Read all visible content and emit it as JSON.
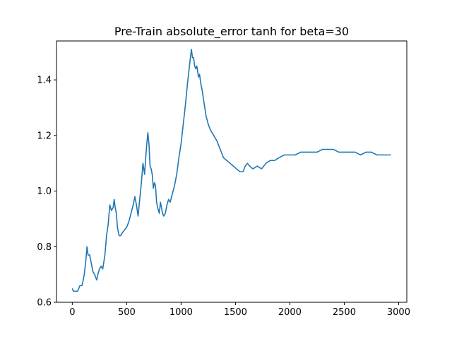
{
  "chart_data": {
    "type": "line",
    "title": "Pre-Train absolute_error tanh for beta=30",
    "xlabel": "",
    "ylabel": "",
    "xlim": [
      -145,
      3075
    ],
    "ylim": [
      0.6,
      1.54
    ],
    "xticks": [
      0,
      500,
      1000,
      1500,
      2000,
      2500,
      3000
    ],
    "xtick_labels": [
      "0",
      "500",
      "1000",
      "1500",
      "2000",
      "2500",
      "3000"
    ],
    "yticks": [
      0.6,
      0.8,
      1.0,
      1.2,
      1.4
    ],
    "ytick_labels": [
      "0.6",
      "0.8",
      "1.0",
      "1.2",
      "1.4"
    ],
    "grid": false,
    "series": [
      {
        "name": "",
        "color": "#1f77b4",
        "x": [
          0,
          10,
          30,
          50,
          70,
          90,
          110,
          125,
          135,
          145,
          160,
          175,
          190,
          205,
          215,
          225,
          235,
          250,
          265,
          280,
          300,
          315,
          330,
          345,
          360,
          375,
          385,
          395,
          405,
          415,
          430,
          445,
          460,
          480,
          500,
          520,
          540,
          560,
          575,
          590,
          605,
          620,
          635,
          650,
          665,
          675,
          685,
          695,
          705,
          715,
          725,
          735,
          745,
          755,
          765,
          775,
          785,
          800,
          810,
          820,
          830,
          840,
          855,
          870,
          885,
          900,
          920,
          940,
          960,
          980,
          1000,
          1020,
          1040,
          1060,
          1080,
          1095,
          1105,
          1115,
          1125,
          1135,
          1145,
          1160,
          1170,
          1180,
          1195,
          1210,
          1230,
          1250,
          1270,
          1300,
          1330,
          1360,
          1390,
          1420,
          1450,
          1480,
          1510,
          1540,
          1570,
          1590,
          1610,
          1630,
          1660,
          1700,
          1740,
          1780,
          1820,
          1860,
          1900,
          1950,
          2000,
          2050,
          2100,
          2150,
          2200,
          2250,
          2300,
          2350,
          2400,
          2450,
          2500,
          2550,
          2600,
          2650,
          2700,
          2750,
          2800,
          2850,
          2900,
          2930
        ],
        "y": [
          0.65,
          0.64,
          0.64,
          0.64,
          0.66,
          0.66,
          0.7,
          0.75,
          0.8,
          0.77,
          0.77,
          0.74,
          0.71,
          0.7,
          0.69,
          0.68,
          0.7,
          0.72,
          0.73,
          0.72,
          0.77,
          0.84,
          0.88,
          0.95,
          0.93,
          0.94,
          0.97,
          0.94,
          0.92,
          0.87,
          0.84,
          0.84,
          0.85,
          0.86,
          0.87,
          0.89,
          0.92,
          0.95,
          0.98,
          0.95,
          0.91,
          0.97,
          1.03,
          1.1,
          1.06,
          1.12,
          1.17,
          1.21,
          1.17,
          1.09,
          1.08,
          1.06,
          1.01,
          1.03,
          1.02,
          0.96,
          0.94,
          0.92,
          0.96,
          0.94,
          0.92,
          0.91,
          0.92,
          0.95,
          0.97,
          0.96,
          0.99,
          1.02,
          1.06,
          1.12,
          1.17,
          1.24,
          1.31,
          1.39,
          1.46,
          1.51,
          1.48,
          1.48,
          1.45,
          1.44,
          1.45,
          1.41,
          1.42,
          1.39,
          1.36,
          1.32,
          1.27,
          1.24,
          1.22,
          1.2,
          1.18,
          1.15,
          1.12,
          1.11,
          1.1,
          1.09,
          1.08,
          1.07,
          1.07,
          1.09,
          1.1,
          1.09,
          1.08,
          1.09,
          1.08,
          1.1,
          1.11,
          1.11,
          1.12,
          1.13,
          1.13,
          1.13,
          1.14,
          1.14,
          1.14,
          1.14,
          1.15,
          1.15,
          1.15,
          1.14,
          1.14,
          1.14,
          1.14,
          1.13,
          1.14,
          1.14,
          1.13,
          1.13,
          1.13,
          1.13
        ]
      }
    ]
  }
}
